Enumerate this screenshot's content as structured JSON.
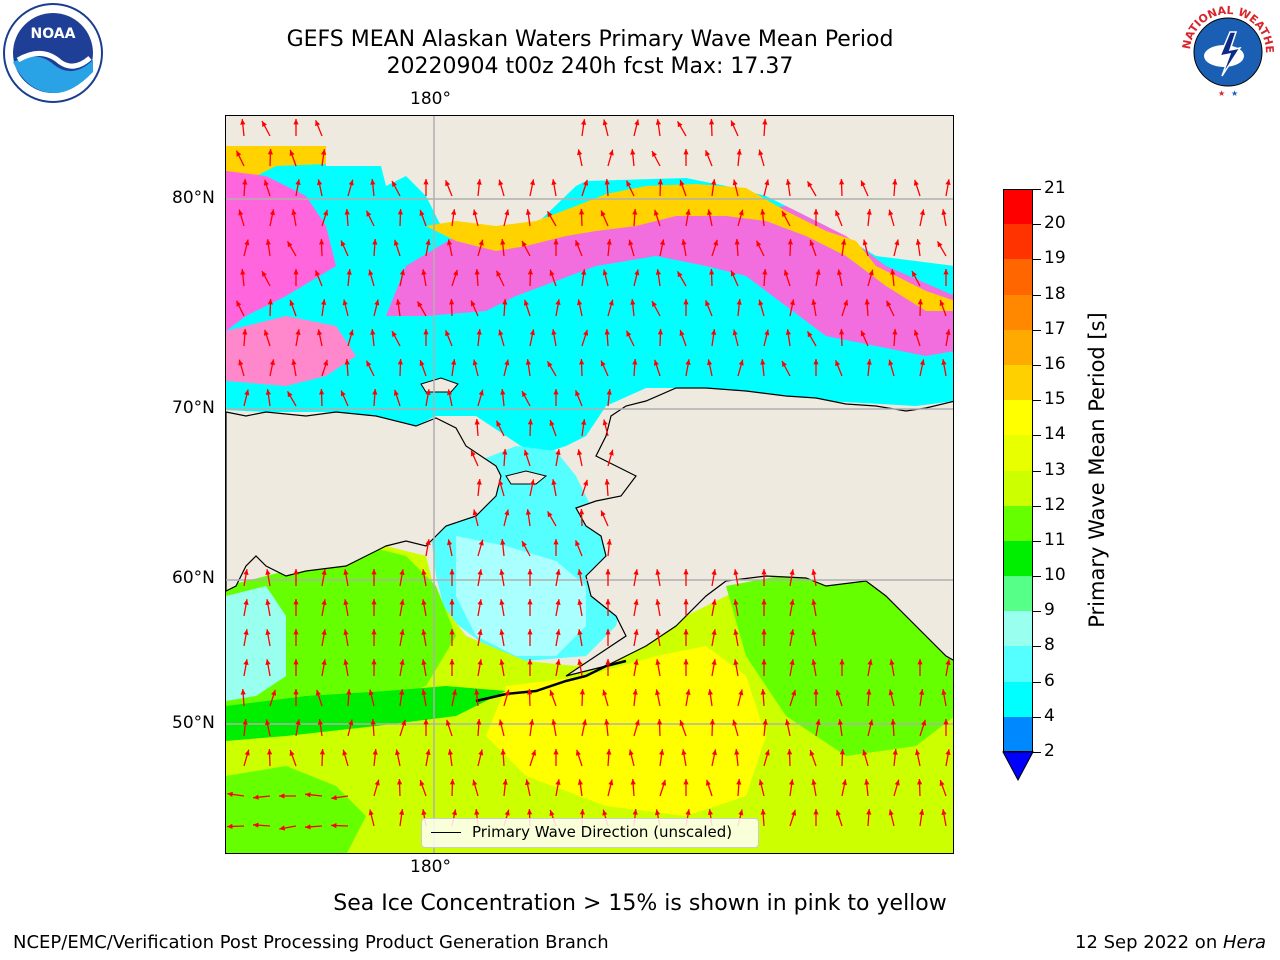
{
  "header": {
    "title_line1": "GEFS MEAN Alaskan Waters Primary Wave Mean Period",
    "title_line2": "20220904 t00z 240h fcst   Max: 17.37"
  },
  "map": {
    "lon_label_top": "180°",
    "lon_label_bottom": "180°",
    "lat_labels": [
      "80°N",
      "70°N",
      "60°N",
      "50°N"
    ],
    "legend_text": "Primary Wave Direction (unscaled)",
    "land_color": "#eeeae0",
    "arrow_color": "#ff0000"
  },
  "colorbar": {
    "title": "Primary Wave Mean Period [s]",
    "tick_labels": [
      "21",
      "20",
      "19",
      "18",
      "17",
      "16",
      "15",
      "14",
      "13",
      "12",
      "11",
      "10",
      "9",
      "8",
      "6",
      "4",
      "2"
    ],
    "colors": [
      "#ff0000",
      "#ff3300",
      "#ff6600",
      "#ff8800",
      "#ffaa00",
      "#ffd000",
      "#ffff00",
      "#e8ff00",
      "#ccff00",
      "#66ff00",
      "#00ee00",
      "#55ff88",
      "#99ffee",
      "#55ffff",
      "#00ffff",
      "#0088ff",
      "#0000ff"
    ]
  },
  "caption": "Sea Ice Concentration > 15% is shown in pink to yellow",
  "footer": {
    "left": "NCEP/EMC/Verification Post Processing Product Generation Branch",
    "right_date": "12 Sep 2022 on ",
    "right_machine": "Hera"
  },
  "logos": {
    "noaa_text": "NOAA",
    "nws_text": "NATIONAL WEATHER SERVICE"
  }
}
